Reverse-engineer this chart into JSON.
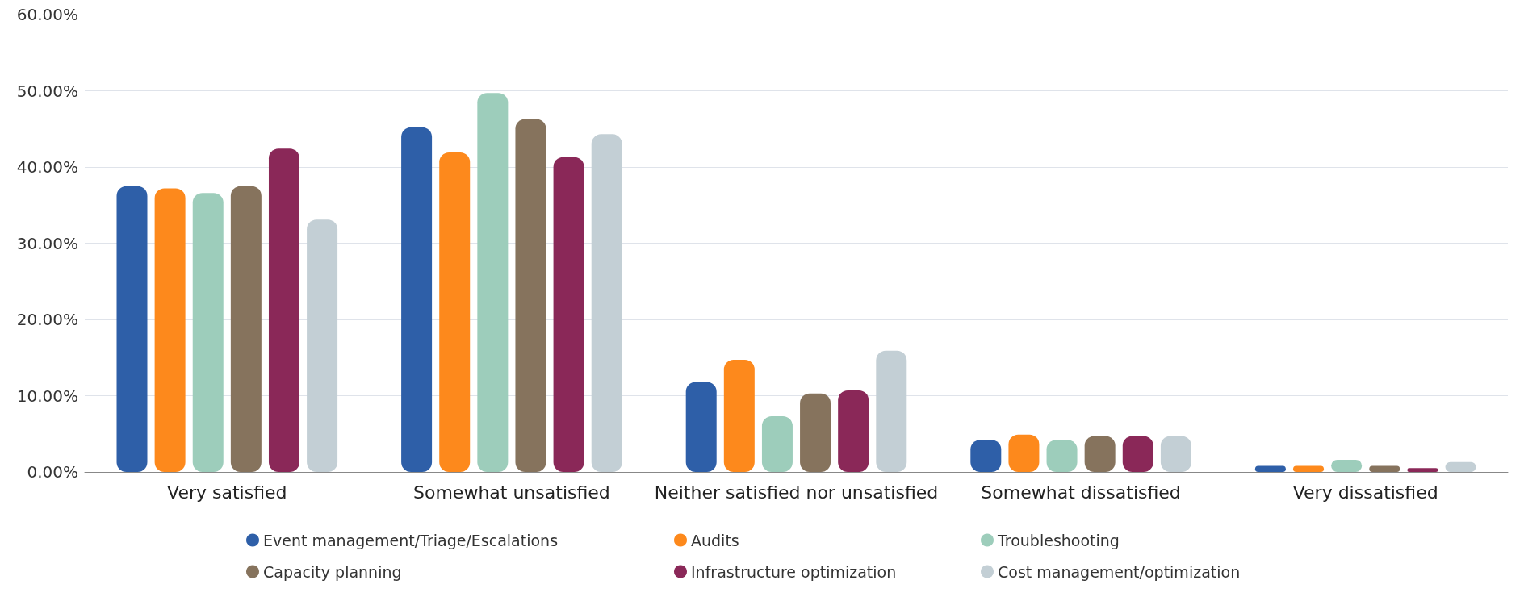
{
  "chart_data": {
    "type": "bar",
    "categories": [
      "Very satisfied",
      "Somewhat unsatisfied",
      "Neither satisfied nor unsatisfied",
      "Somewhat dissatisfied",
      "Very dissatisfied"
    ],
    "series": [
      {
        "name": "Event management/Triage/Escalations",
        "color": "#2e5fa8",
        "values": [
          37.5,
          45.2,
          11.8,
          4.2,
          0.8
        ]
      },
      {
        "name": "Audits",
        "color": "#fd891c",
        "values": [
          37.2,
          41.9,
          14.7,
          4.9,
          0.8
        ]
      },
      {
        "name": "Troubleshooting",
        "color": "#9dcdbb",
        "values": [
          36.6,
          49.7,
          7.3,
          4.2,
          1.6
        ]
      },
      {
        "name": "Capacity planning",
        "color": "#86735d",
        "values": [
          37.5,
          46.3,
          10.3,
          4.7,
          0.8
        ]
      },
      {
        "name": "Infrastructure optimization",
        "color": "#8a2858",
        "values": [
          42.4,
          41.3,
          10.7,
          4.7,
          0.5
        ]
      },
      {
        "name": "Cost management/optimization",
        "color": "#c3cfd5",
        "values": [
          33.1,
          44.3,
          15.9,
          4.7,
          1.3
        ]
      }
    ],
    "ylim": [
      0,
      60
    ],
    "yticks": [
      {
        "value": 0,
        "label": "0.00%"
      },
      {
        "value": 10,
        "label": "10.00%"
      },
      {
        "value": 20,
        "label": "20.00%"
      },
      {
        "value": 30,
        "label": "30.00%"
      },
      {
        "value": 40,
        "label": "40.00%"
      },
      {
        "value": 50,
        "label": "50.00%"
      },
      {
        "value": 60,
        "label": "60.00%"
      }
    ],
    "grid": "y",
    "legend": "bottom"
  }
}
